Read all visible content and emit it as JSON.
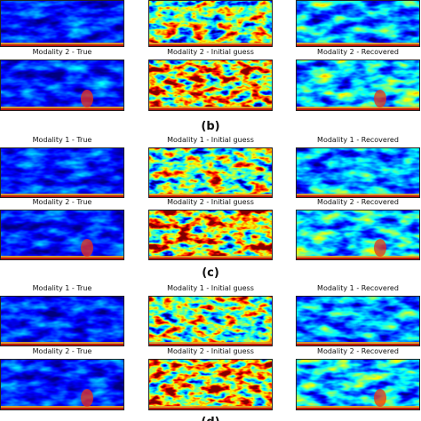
{
  "rows": [
    {
      "titles": [
        "Modality 2 - True",
        "Modality 2 - Initial guess",
        "Modality 2 - Recovered"
      ]
    },
    {
      "titles": [
        "Modality 1 - True",
        "Modality 1 - Initial guess",
        "Modality 1 - Recovered"
      ]
    },
    {
      "titles": [
        "Modality 2 - True",
        "Modality 2 - Initial guess",
        "Modality 2 - Recovered"
      ]
    },
    {
      "titles": [
        "Modality 1 - True",
        "Modality 1 - Initial guess",
        "Modality 1 - Recovered"
      ]
    },
    {
      "titles": [
        "Modality 2 - True",
        "Modality 2 - Initial guess",
        "Modality 2 - Recovered"
      ]
    }
  ],
  "captions": [
    "(b)",
    "(c)",
    "(d)"
  ]
}
